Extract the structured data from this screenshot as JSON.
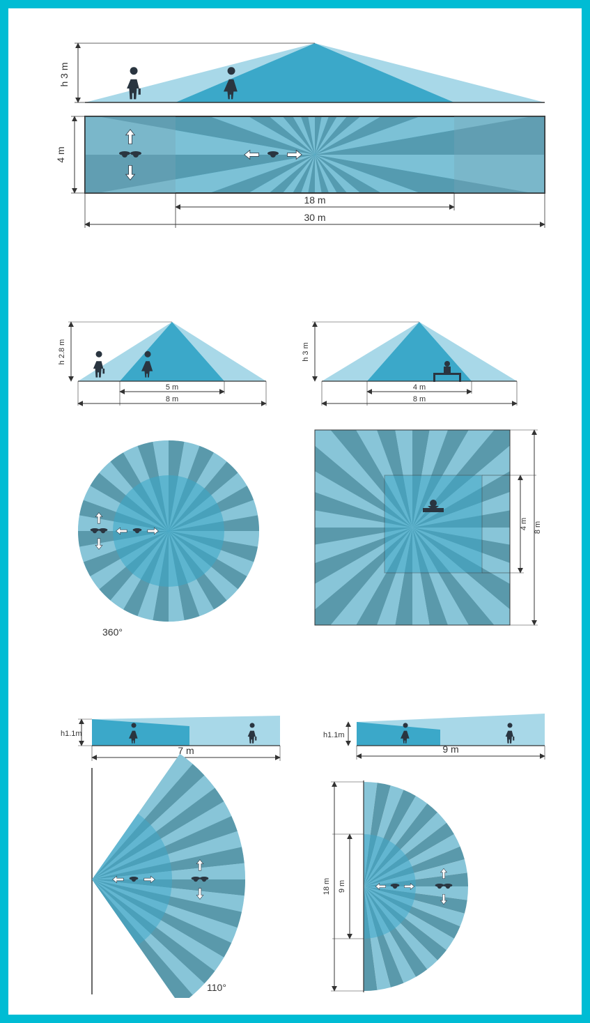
{
  "colors": {
    "frame": "#00bcd4",
    "cone_light": "#a8d8e8",
    "cone_dark": "#3ba8c9",
    "ray_light": "#88c5d8",
    "ray_dark": "#5a99ab",
    "person": "#2a3540",
    "dim_line": "#333333",
    "arrow_white": "#ffffff",
    "outline": "#333333"
  },
  "p1": {
    "height": "h 3 m",
    "width": "4 m",
    "inner": "18 m",
    "outer": "30 m"
  },
  "p2": {
    "height": "h 2.8 m",
    "inner": "5 m",
    "outer": "8 m",
    "angle": "360°"
  },
  "p3": {
    "height": "h 3 m",
    "inner": "4 m",
    "outer": "8 m",
    "side_inner": "4 m",
    "side_outer": "8 m"
  },
  "p4": {
    "height": "h1.1m",
    "range": "7 m",
    "angle": "110°"
  },
  "p5": {
    "height": "h1.1m",
    "range": "9 m",
    "side_inner": "9 m",
    "side_outer": "18 m"
  }
}
